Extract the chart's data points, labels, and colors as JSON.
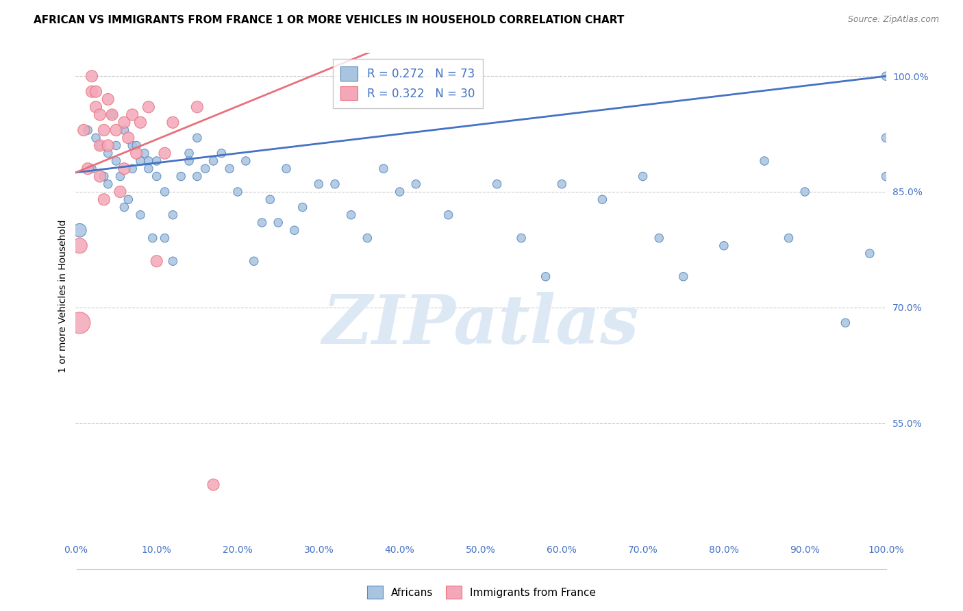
{
  "title": "AFRICAN VS IMMIGRANTS FROM FRANCE 1 OR MORE VEHICLES IN HOUSEHOLD CORRELATION CHART",
  "source": "Source: ZipAtlas.com",
  "ylabel": "1 or more Vehicles in Household",
  "xlabel": "",
  "xlim": [
    0,
    100
  ],
  "ylim": [
    40,
    103
  ],
  "yticks": [
    55.0,
    70.0,
    85.0,
    100.0
  ],
  "xticks": [
    0,
    10,
    20,
    30,
    40,
    50,
    60,
    70,
    80,
    90,
    100
  ],
  "blue_line_color": "#4472c4",
  "pink_line_color": "#e8707a",
  "africans": {
    "color": "#a8c4e0",
    "edge_color": "#5588bb",
    "x": [
      0.5,
      1.5,
      2,
      2.5,
      3,
      3.5,
      4,
      4,
      4.5,
      5,
      5,
      5.5,
      6,
      6,
      6.5,
      7,
      7,
      7.5,
      8,
      8,
      8.5,
      9,
      9,
      9.5,
      10,
      10,
      11,
      11,
      12,
      12,
      13,
      14,
      14,
      15,
      15,
      16,
      17,
      18,
      19,
      20,
      21,
      22,
      23,
      24,
      25,
      26,
      27,
      28,
      30,
      32,
      34,
      36,
      38,
      40,
      42,
      46,
      52,
      55,
      58,
      60,
      65,
      70,
      72,
      75,
      80,
      85,
      88,
      90,
      95,
      98,
      100,
      100,
      100
    ],
    "y": [
      80,
      93,
      88,
      92,
      91,
      87,
      90,
      86,
      95,
      89,
      91,
      87,
      83,
      93,
      84,
      91,
      88,
      91,
      82,
      89,
      90,
      89,
      88,
      79,
      89,
      87,
      79,
      85,
      82,
      76,
      87,
      90,
      89,
      92,
      87,
      88,
      89,
      90,
      88,
      85,
      89,
      76,
      81,
      84,
      81,
      88,
      80,
      83,
      86,
      86,
      82,
      79,
      88,
      85,
      86,
      82,
      86,
      79,
      74,
      86,
      84,
      87,
      79,
      74,
      78,
      89,
      79,
      85,
      68,
      77,
      87,
      92,
      100
    ],
    "sizes": [
      200,
      80,
      80,
      80,
      80,
      80,
      80,
      80,
      80,
      80,
      80,
      80,
      80,
      80,
      80,
      80,
      80,
      80,
      80,
      80,
      80,
      80,
      80,
      80,
      80,
      80,
      80,
      80,
      80,
      80,
      80,
      80,
      80,
      80,
      80,
      80,
      80,
      80,
      80,
      80,
      80,
      80,
      80,
      80,
      80,
      80,
      80,
      80,
      80,
      80,
      80,
      80,
      80,
      80,
      80,
      80,
      80,
      80,
      80,
      80,
      80,
      80,
      80,
      80,
      80,
      80,
      80,
      80,
      80,
      80,
      80,
      80,
      80
    ]
  },
  "france": {
    "color": "#f4a7b9",
    "edge_color": "#e8707a",
    "x": [
      0.5,
      0.5,
      1,
      1.5,
      2,
      2,
      2.5,
      2.5,
      3,
      3,
      3,
      3.5,
      3.5,
      4,
      4,
      4.5,
      5,
      5.5,
      6,
      6,
      6.5,
      7,
      7.5,
      8,
      9,
      10,
      11,
      12,
      15,
      17
    ],
    "y": [
      68,
      78,
      93,
      88,
      100,
      98,
      98,
      96,
      95,
      91,
      87,
      93,
      84,
      97,
      91,
      95,
      93,
      85,
      94,
      88,
      92,
      95,
      90,
      94,
      96,
      76,
      90,
      94,
      96,
      47
    ],
    "sizes": [
      500,
      250,
      150,
      150,
      150,
      150,
      150,
      150,
      150,
      150,
      150,
      150,
      150,
      150,
      150,
      150,
      150,
      150,
      150,
      150,
      150,
      150,
      150,
      150,
      150,
      150,
      150,
      150,
      150,
      150
    ]
  },
  "background_color": "#ffffff",
  "grid_color": "#cccccc",
  "title_fontsize": 11,
  "axis_label_fontsize": 10,
  "tick_color": "#4472c4",
  "watermark": "ZIPatlas",
  "watermark_color": "#dce9f5"
}
